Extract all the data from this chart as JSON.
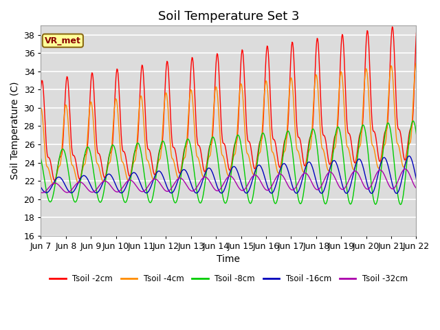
{
  "title": "Soil Temperature Set 3",
  "xlabel": "Time",
  "ylabel": "Soil Temperature (C)",
  "ylim": [
    16,
    39
  ],
  "annotation": "VR_met",
  "xtick_labels": [
    "Jun 7",
    "Jun 8",
    "Jun 9",
    "Jun 10",
    "Jun 11",
    "Jun 12",
    "Jun 13",
    "Jun 14",
    "Jun 15",
    "Jun 16",
    "Jun 17",
    "Jun 18",
    "Jun 19",
    "Jun 20",
    "Jun 21",
    "Jun 22"
  ],
  "xtick_positions": [
    0,
    1,
    2,
    3,
    4,
    5,
    6,
    7,
    8,
    9,
    10,
    11,
    12,
    13,
    14,
    15
  ],
  "ytick_positions": [
    16,
    18,
    20,
    22,
    24,
    26,
    28,
    30,
    32,
    34,
    36,
    38
  ],
  "series": [
    {
      "label": "Tsoil -2cm",
      "color": "#FF0000"
    },
    {
      "label": "Tsoil -4cm",
      "color": "#FF8C00"
    },
    {
      "label": "Tsoil -8cm",
      "color": "#00CC00"
    },
    {
      "label": "Tsoil -16cm",
      "color": "#0000BB"
    },
    {
      "label": "Tsoil -32cm",
      "color": "#AA00AA"
    }
  ],
  "bg_color": "#DCDCDC",
  "fig_bg_color": "#FFFFFF",
  "grid_color": "#FFFFFF",
  "title_fontsize": 13,
  "axis_label_fontsize": 10,
  "tick_fontsize": 9
}
